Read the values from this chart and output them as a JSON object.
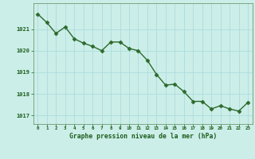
{
  "x": [
    0,
    1,
    2,
    3,
    4,
    5,
    6,
    7,
    8,
    9,
    10,
    11,
    12,
    13,
    14,
    15,
    16,
    17,
    18,
    19,
    20,
    21,
    22,
    23
  ],
  "y": [
    1021.7,
    1021.3,
    1020.8,
    1021.1,
    1020.55,
    1020.35,
    1020.2,
    1020.0,
    1020.4,
    1020.4,
    1020.1,
    1020.0,
    1019.55,
    1018.9,
    1018.4,
    1018.45,
    1018.1,
    1017.65,
    1017.65,
    1017.3,
    1017.45,
    1017.3,
    1017.2,
    1017.6
  ],
  "line_color": "#2d6a2d",
  "marker_color": "#2d6a2d",
  "bg_color": "#cceee8",
  "grid_color": "#aadddd",
  "xlabel": "Graphe pression niveau de la mer (hPa)",
  "xlabel_color": "#1a5c1a",
  "tick_color": "#1a5c1a",
  "ylim_min": 1016.6,
  "ylim_max": 1022.2,
  "yticks": [
    1017,
    1018,
    1019,
    1020,
    1021
  ],
  "marker_size": 2.5,
  "linewidth": 1.0
}
